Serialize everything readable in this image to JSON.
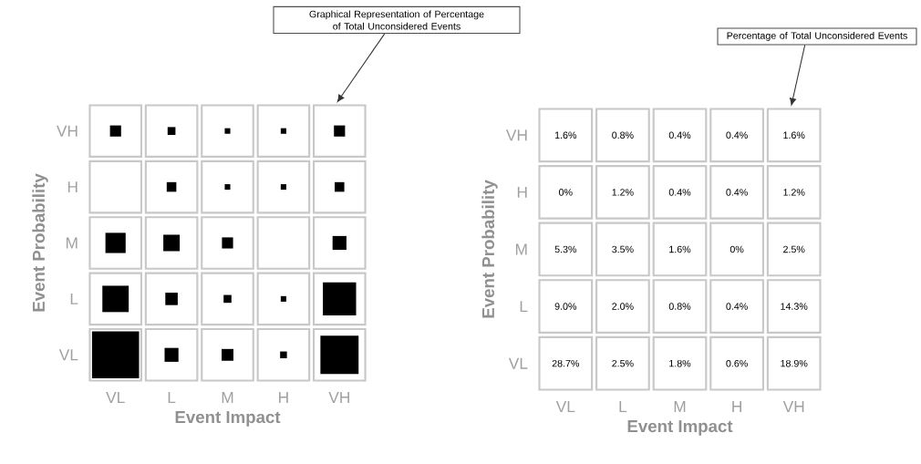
{
  "chart_data": {
    "type": "heatmap",
    "marker": "square",
    "color": "#000000",
    "xlabel": "Event Impact",
    "ylabel": "Event Probability",
    "annotations": [
      "Graphical Representation of Percentage of Total Unconsidered Events",
      "Percentage of Total Unconsidered Events"
    ],
    "categories": [
      "VL",
      "L",
      "M",
      "H",
      "VH"
    ],
    "y_categories": [
      "VH",
      "H",
      "M",
      "L",
      "VL"
    ],
    "cells": [
      [
        1.6,
        0.8,
        0.4,
        0.4,
        1.6
      ],
      [
        0,
        1.2,
        0.4,
        0.4,
        1.2
      ],
      [
        5.3,
        3.5,
        1.6,
        0,
        2.5
      ],
      [
        9.0,
        2.0,
        0.8,
        0.4,
        14.3
      ],
      [
        28.7,
        2.5,
        1.8,
        0.6,
        18.9
      ]
    ],
    "cell_labels": [
      [
        "1.6%",
        "0.8%",
        "0.4%",
        "0.4%",
        "1.6%"
      ],
      [
        "0%",
        "1.2%",
        "0.4%",
        "0.4%",
        "1.2%"
      ],
      [
        "5.3%",
        "3.5%",
        "1.6%",
        "0%",
        "2.5%"
      ],
      [
        "9.0%",
        "2.0%",
        "0.8%",
        "0.4%",
        "14.3%"
      ],
      [
        "28.7%",
        "2.5%",
        "1.8%",
        "0.6%",
        "18.9%"
      ]
    ]
  }
}
